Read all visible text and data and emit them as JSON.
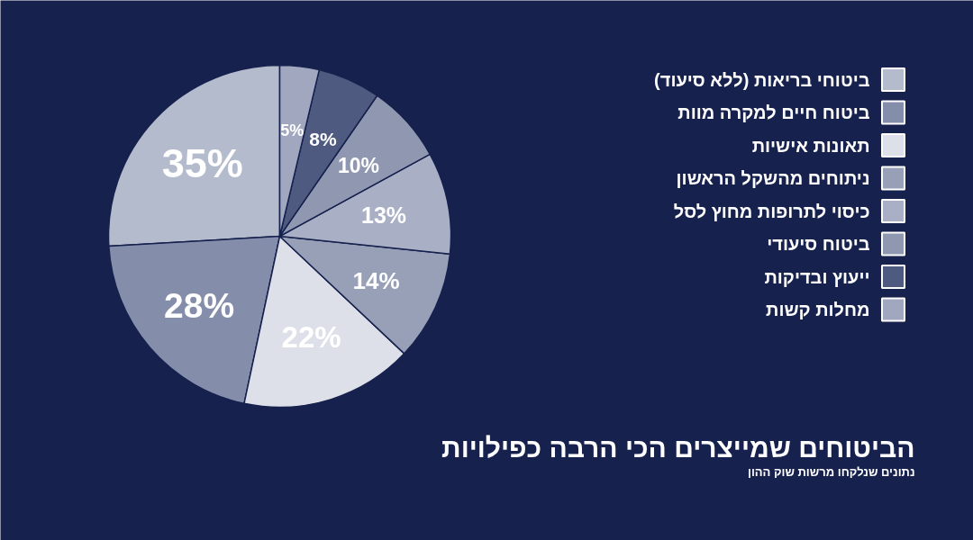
{
  "chart_data": {
    "type": "pie",
    "title": "הביטוחים שמייצרים הכי הרבה כפילויות",
    "subtitle": "נתונים שנלקחו מרשות שוק ההון",
    "categories": [
      "ביטוחי בריאות (ללא סיעוד)",
      "ביטוח חיים למקרה מוות",
      "תאונות אישיות",
      "ניתוחים מהשקל הראשון",
      "כיסוי לתרופות מחוץ לסל",
      "ביטוח סיעודי",
      "ייעוץ ובדיקות",
      "מחלות קשות"
    ],
    "values": [
      35,
      28,
      22,
      14,
      13,
      10,
      8,
      5
    ],
    "colors": [
      "#b4bbcd",
      "#848daa",
      "#dde0e9",
      "#98a0b8",
      "#a9b0c5",
      "#8f97b1",
      "#4f5a80",
      "#a0a7be"
    ],
    "value_labels": [
      "35%",
      "28%",
      "22%",
      "14%",
      "13%",
      "10%",
      "8%",
      "5%"
    ],
    "legend": "top right"
  }
}
